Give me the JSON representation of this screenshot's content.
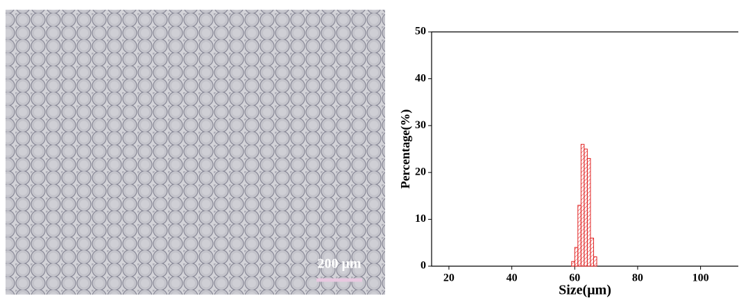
{
  "image_scale_bar": "200 μm",
  "chart_data": {
    "type": "histogram",
    "x_label": "Size(μm)",
    "y_label": "Percentage(%)",
    "bins": [
      59,
      60,
      61,
      62,
      63,
      64,
      65,
      66,
      67
    ],
    "values": [
      1,
      4,
      13,
      26,
      25,
      23,
      6,
      2
    ],
    "color": "#e02020",
    "xlim": [
      14.5,
      112
    ],
    "ylim": [
      0,
      50
    ],
    "xticks": [
      20,
      40,
      60,
      80,
      100
    ],
    "yticks": [
      0,
      10,
      20,
      30,
      40,
      50
    ]
  }
}
